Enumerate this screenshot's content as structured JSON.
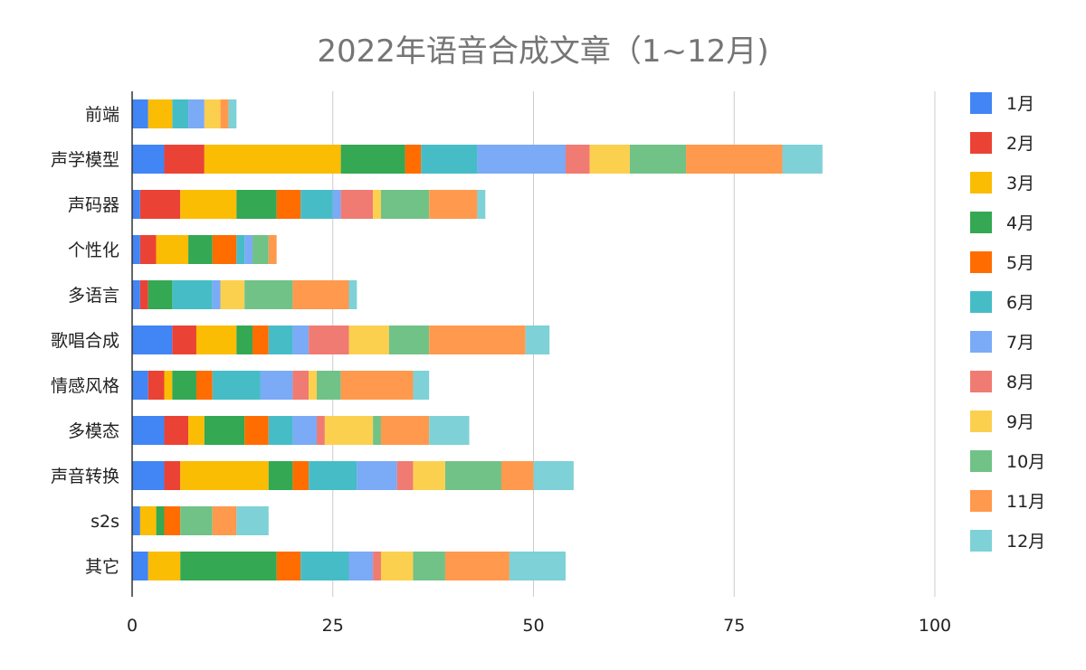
{
  "chart_data": {
    "type": "bar",
    "orientation": "horizontal",
    "stacked": true,
    "title": "2022年语音合成文章（1~12月)",
    "categories": [
      "前端",
      "声学模型",
      "声码器",
      "个性化",
      "多语言",
      "歌唱合成",
      "情感风格",
      "多模态",
      "声音转换",
      "s2s",
      "其它"
    ],
    "xlim": [
      0,
      100
    ],
    "xticks": [
      "0",
      "25",
      "50",
      "75",
      "100"
    ],
    "grid": "vertical",
    "legend_position": "right",
    "series": [
      {
        "name": "1月",
        "color": "#4285F4",
        "values": [
          2,
          4,
          1,
          1,
          1,
          5,
          2,
          4,
          4,
          1,
          2
        ]
      },
      {
        "name": "2月",
        "color": "#EA4335",
        "values": [
          0,
          5,
          5,
          2,
          1,
          3,
          2,
          3,
          2,
          0,
          0
        ]
      },
      {
        "name": "3月",
        "color": "#FBBC04",
        "values": [
          3,
          17,
          7,
          4,
          0,
          5,
          1,
          2,
          11,
          2,
          4
        ]
      },
      {
        "name": "4月",
        "color": "#34A853",
        "values": [
          0,
          8,
          5,
          3,
          3,
          2,
          3,
          5,
          3,
          1,
          12
        ]
      },
      {
        "name": "5月",
        "color": "#FF6D01",
        "values": [
          0,
          2,
          3,
          3,
          0,
          2,
          2,
          3,
          2,
          2,
          3
        ]
      },
      {
        "name": "6月",
        "color": "#46BDC6",
        "values": [
          2,
          7,
          4,
          1,
          5,
          3,
          6,
          3,
          6,
          0,
          6
        ]
      },
      {
        "name": "7月",
        "color": "#7BAAF7",
        "values": [
          2,
          11,
          1,
          1,
          1,
          2,
          4,
          3,
          5,
          0,
          3
        ]
      },
      {
        "name": "8月",
        "color": "#F07B72",
        "values": [
          0,
          3,
          4,
          0,
          0,
          5,
          2,
          1,
          2,
          0,
          1
        ]
      },
      {
        "name": "9月",
        "color": "#FCD04F",
        "values": [
          2,
          5,
          1,
          0,
          3,
          5,
          1,
          6,
          4,
          0,
          4
        ]
      },
      {
        "name": "10月",
        "color": "#71C287",
        "values": [
          0,
          7,
          6,
          2,
          6,
          5,
          3,
          1,
          7,
          4,
          4
        ]
      },
      {
        "name": "11月",
        "color": "#FF994D",
        "values": [
          1,
          12,
          6,
          1,
          7,
          12,
          9,
          6,
          4,
          3,
          8
        ]
      },
      {
        "name": "12月",
        "color": "#7ED1D7",
        "values": [
          1,
          5,
          1,
          0,
          1,
          3,
          2,
          5,
          5,
          4,
          7
        ]
      }
    ]
  }
}
